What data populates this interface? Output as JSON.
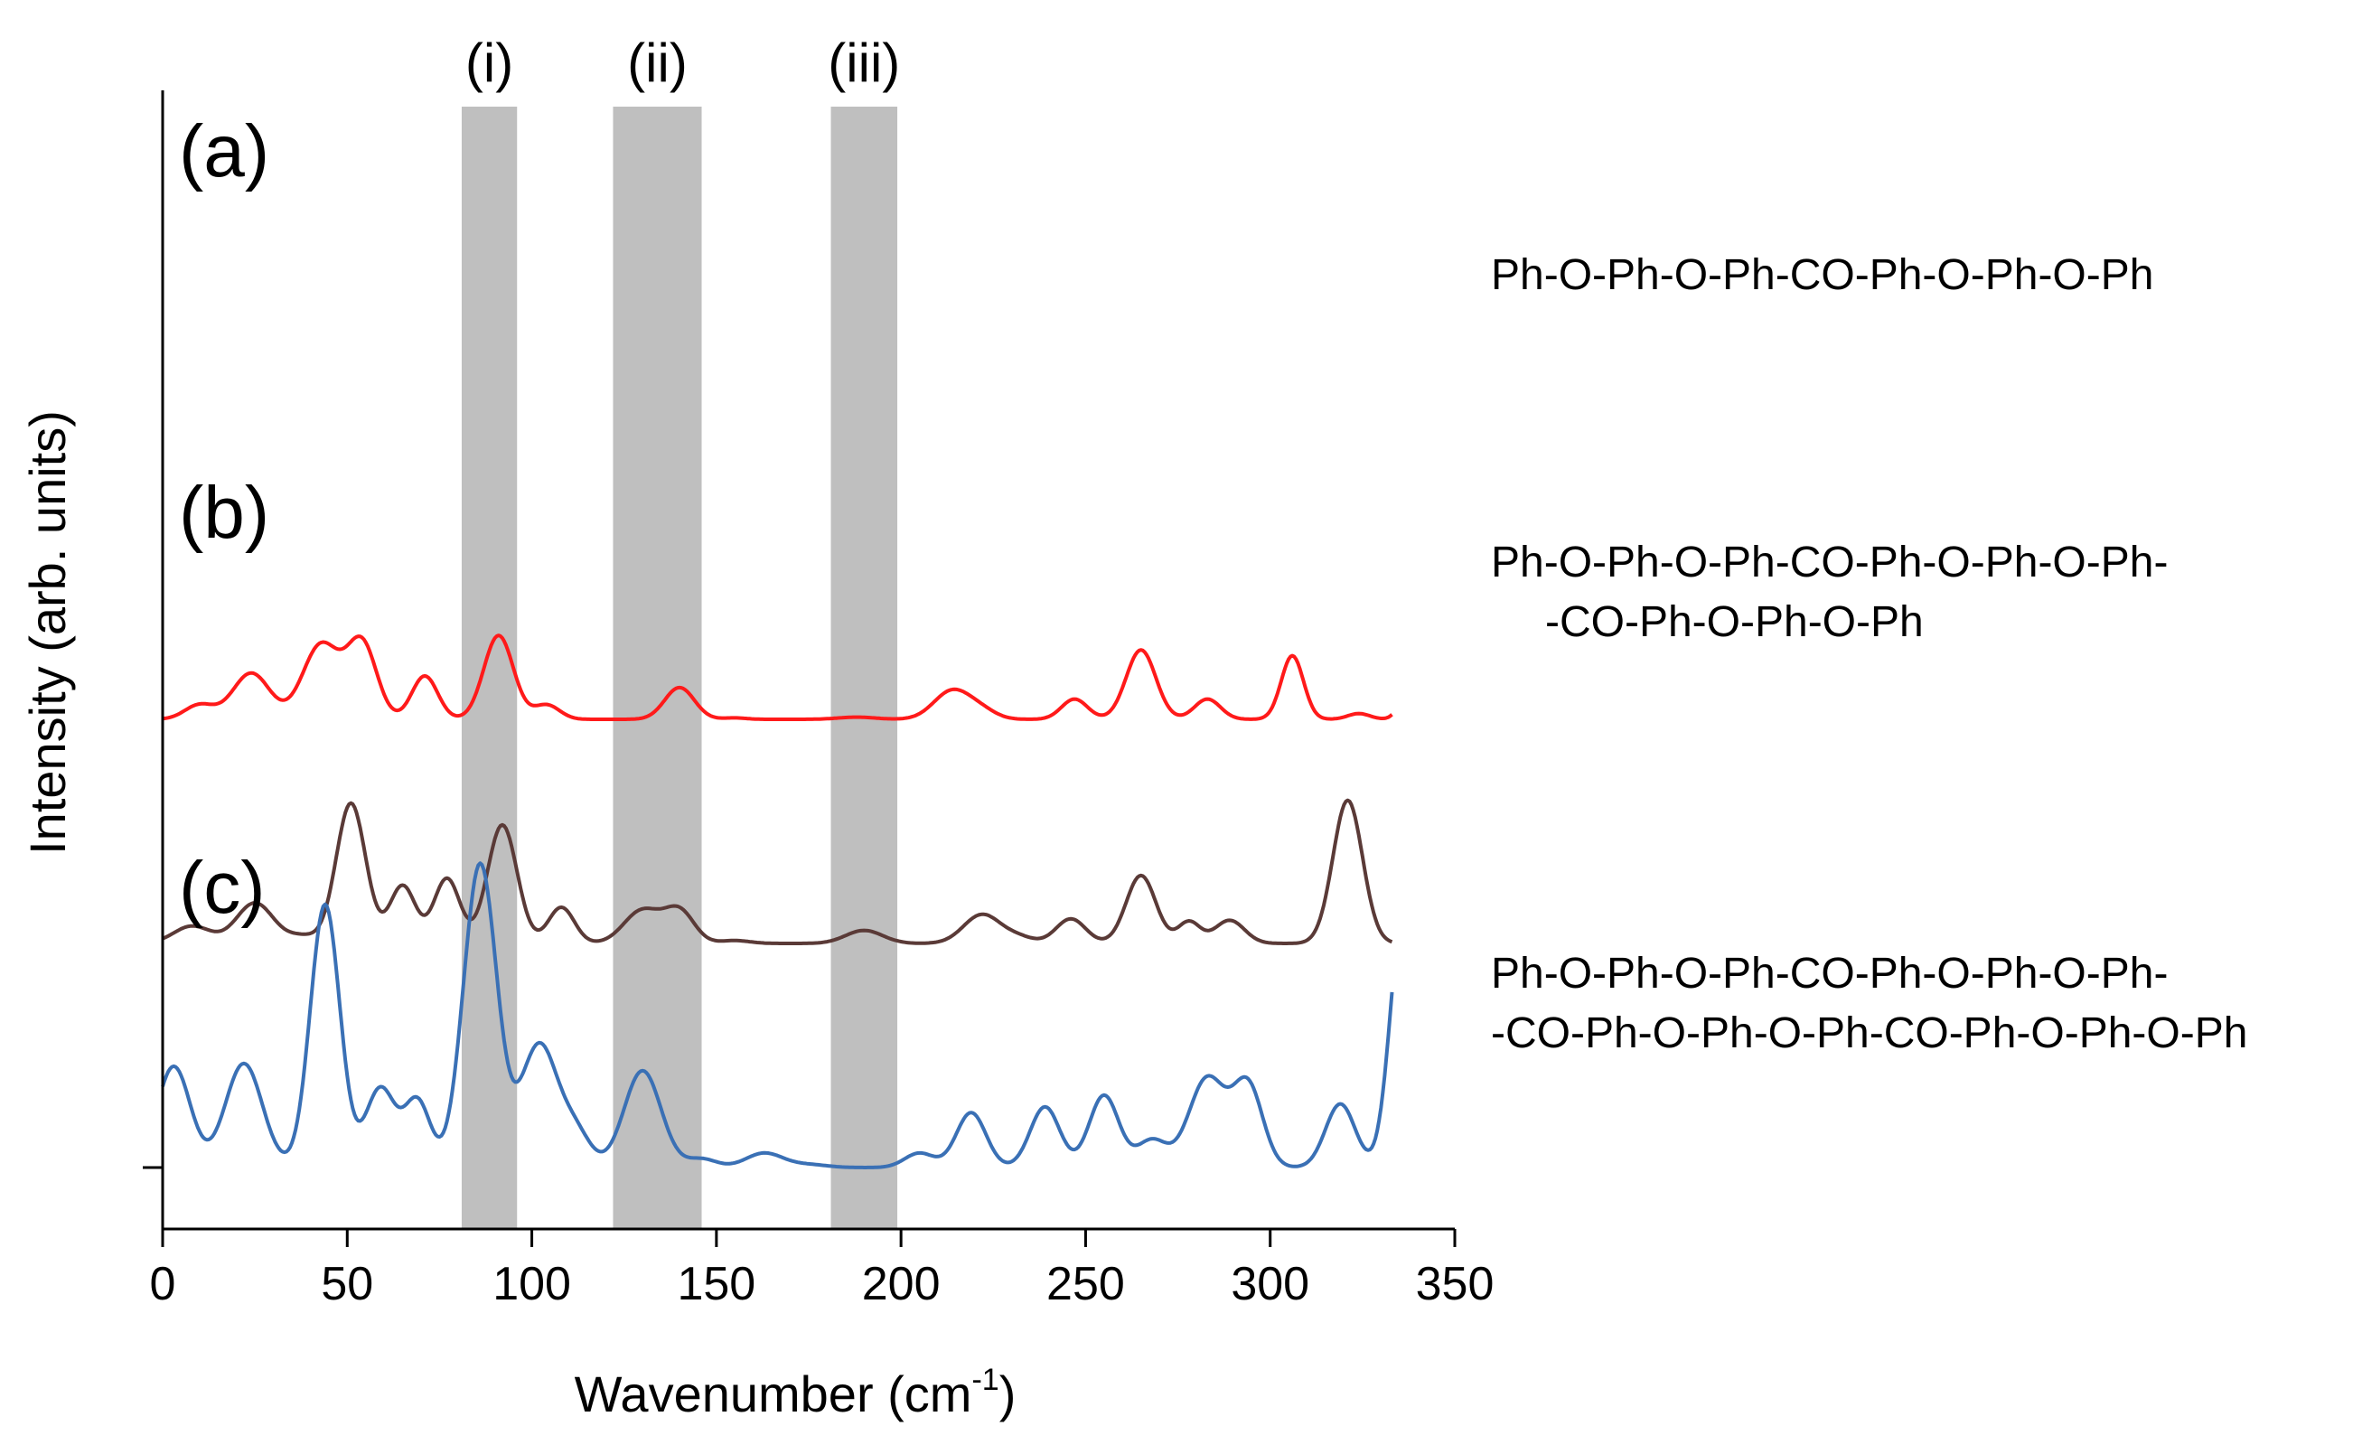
{
  "chart_data": {
    "type": "line",
    "title": "",
    "xlabel": "Wavenumber (cm",
    "xlabel_sup": "-1",
    "xlabel_close": ")",
    "ylabel": "Intensity (arb. units)",
    "xlim": [
      0,
      350
    ],
    "x_ticks": [
      0,
      50,
      100,
      150,
      200,
      250,
      300,
      350
    ],
    "grid": false,
    "yticks_shown": false,
    "bands": [
      {
        "label": "(i)",
        "x_range": [
          81,
          96
        ],
        "color": "#bfbfbf"
      },
      {
        "label": "(ii)",
        "x_range": [
          122,
          146
        ],
        "color": "#bfbfbf"
      },
      {
        "label": "(iii)",
        "x_range": [
          181,
          199
        ],
        "color": "#bfbfbf"
      }
    ],
    "series": [
      {
        "name": "(a)",
        "formula_lines": [
          "Ph-O-Ph-O-Ph-CO-Ph-O-Ph-O-Ph"
        ],
        "color": "#ff1a1a",
        "offset": 3.1,
        "peaks": [
          [
            10,
            0.1,
            4
          ],
          [
            24,
            0.32,
            5
          ],
          [
            43,
            0.52,
            5
          ],
          [
            54,
            0.52,
            4
          ],
          [
            71,
            0.3,
            3.5
          ],
          [
            91,
            0.58,
            4
          ],
          [
            104,
            0.1,
            3.5
          ],
          [
            140,
            0.22,
            4
          ],
          [
            155,
            0.01,
            3
          ],
          [
            188,
            0.015,
            5
          ],
          [
            214,
            0.2,
            5
          ],
          [
            222,
            0.05,
            4
          ],
          [
            247,
            0.14,
            3.5
          ],
          [
            265,
            0.48,
            4
          ],
          [
            283,
            0.14,
            3.5
          ],
          [
            306,
            0.44,
            3
          ],
          [
            324,
            0.04,
            3
          ],
          [
            336,
            0.1,
            2
          ]
        ]
      },
      {
        "name": "(b)",
        "formula_lines": [
          "Ph-O-Ph-O-Ph-CO-Ph-O-Ph-O-Ph-",
          "-CO-Ph-O-Ph-O-Ph"
        ],
        "color": "#5a3a37",
        "offset": 1.55,
        "peaks": [
          [
            8,
            0.12,
            5
          ],
          [
            25,
            0.28,
            5
          ],
          [
            38,
            0.05,
            4
          ],
          [
            51,
            0.97,
            4
          ],
          [
            65,
            0.4,
            3.5
          ],
          [
            77,
            0.45,
            3.5
          ],
          [
            92,
            0.82,
            4
          ],
          [
            108,
            0.25,
            3.5
          ],
          [
            130,
            0.23,
            5
          ],
          [
            140,
            0.22,
            4
          ],
          [
            155,
            0.02,
            4
          ],
          [
            190,
            0.09,
            5
          ],
          [
            222,
            0.2,
            5
          ],
          [
            232,
            0.04,
            4
          ],
          [
            246,
            0.17,
            4
          ],
          [
            265,
            0.47,
            4
          ],
          [
            278,
            0.15,
            3
          ],
          [
            289,
            0.16,
            4
          ],
          [
            321,
            0.99,
            4
          ]
        ]
      },
      {
        "name": "(c)",
        "formula_lines": [
          "Ph-O-Ph-O-Ph-CO-Ph-O-Ph-O-Ph-",
          "-CO-Ph-O-Ph-O-Ph-CO-Ph-O-Ph-O-Ph"
        ],
        "color": "#3a70b5",
        "offset": 0.0,
        "peaks": [
          [
            3,
            0.7,
            4.5
          ],
          [
            22,
            0.72,
            5
          ],
          [
            44,
            1.82,
            4
          ],
          [
            59,
            0.55,
            4
          ],
          [
            69,
            0.46,
            3.5
          ],
          [
            86,
            2.1,
            4.5
          ],
          [
            102,
            0.85,
            5
          ],
          [
            112,
            0.22,
            4
          ],
          [
            130,
            0.67,
            5
          ],
          [
            146,
            0.06,
            4
          ],
          [
            163,
            0.1,
            5
          ],
          [
            175,
            0.02,
            5
          ],
          [
            205,
            0.1,
            4
          ],
          [
            219,
            0.38,
            4
          ],
          [
            239,
            0.42,
            4
          ],
          [
            255,
            0.5,
            4
          ],
          [
            268,
            0.19,
            4
          ],
          [
            283,
            0.62,
            5
          ],
          [
            294,
            0.56,
            4
          ],
          [
            319,
            0.44,
            4
          ],
          [
            336,
            1.75,
            3.5
          ]
        ]
      }
    ]
  }
}
